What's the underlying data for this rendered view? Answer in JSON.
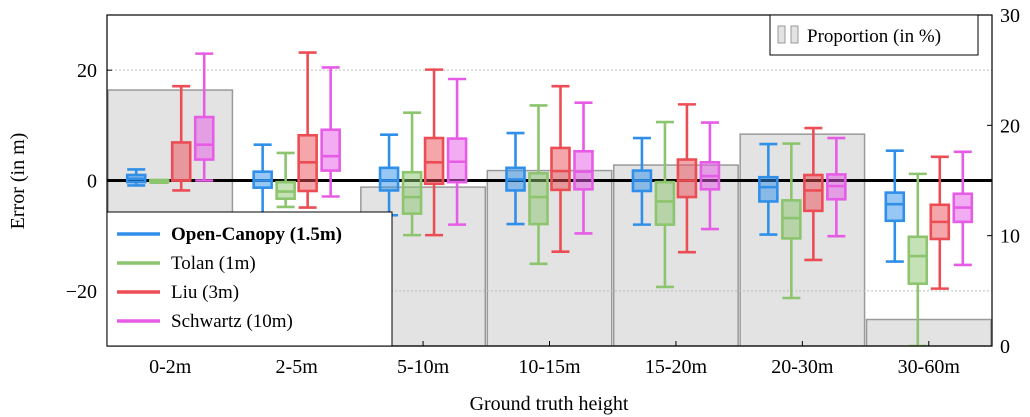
{
  "chart_data": {
    "type": "box",
    "title": "",
    "xlabel": "Ground truth height",
    "ylabel": "Error (in m)",
    "ylim": [
      -30,
      30
    ],
    "yticks": [
      -20,
      0,
      20
    ],
    "y2lim": [
      0,
      30
    ],
    "y2ticks": [
      0,
      10,
      20,
      30
    ],
    "grid": "horizontal dashed at primary ticks",
    "legend_position": "bottom-left",
    "categories": [
      "0-2m",
      "2-5m",
      "5-10m",
      "10-15m",
      "15-20m",
      "20-30m",
      "30-60m"
    ],
    "proportion": {
      "name": "Proportion (in %)",
      "axis": "secondary",
      "values": [
        23.2,
        8.8,
        14.4,
        15.9,
        16.4,
        19.2,
        2.4
      ],
      "color": "#d0d0d0"
    },
    "series": [
      {
        "name": "Open-Canopy (1.5m)",
        "bold": true,
        "color": "#2f8fe9",
        "boxes": [
          {
            "whislo": -0.9,
            "q1": -0.3,
            "med": 0.3,
            "q3": 1.0,
            "whishi": 2.0
          },
          {
            "whislo": -6.0,
            "q1": -1.3,
            "med": 0.0,
            "q3": 1.6,
            "whishi": 6.5
          },
          {
            "whislo": -6.3,
            "q1": -1.8,
            "med": 0.0,
            "q3": 2.3,
            "whishi": 8.3
          },
          {
            "whislo": -7.9,
            "q1": -1.8,
            "med": 0.2,
            "q3": 2.3,
            "whishi": 8.6
          },
          {
            "whislo": -8.0,
            "q1": -1.9,
            "med": 0.0,
            "q3": 1.8,
            "whishi": 7.7
          },
          {
            "whislo": -9.8,
            "q1": -3.8,
            "med": -1.2,
            "q3": 0.6,
            "whishi": 6.6
          },
          {
            "whislo": -14.7,
            "q1": -7.3,
            "med": -4.3,
            "q3": -2.2,
            "whishi": 5.4
          }
        ]
      },
      {
        "name": "Tolan (1m)",
        "bold": false,
        "color": "#8cc56e",
        "boxes": [
          {
            "whislo": -0.4,
            "q1": -0.3,
            "med": -0.1,
            "q3": 0.0,
            "whishi": 0.1
          },
          {
            "whislo": -4.8,
            "q1": -3.3,
            "med": -2.0,
            "q3": -0.3,
            "whishi": 5.0
          },
          {
            "whislo": -9.9,
            "q1": -6.0,
            "med": -3.0,
            "q3": 1.5,
            "whishi": 12.3
          },
          {
            "whislo": -15.1,
            "q1": -7.9,
            "med": -3.0,
            "q3": 1.3,
            "whishi": 13.6
          },
          {
            "whislo": -19.3,
            "q1": -8.0,
            "med": -3.8,
            "q3": -0.3,
            "whishi": 10.6
          },
          {
            "whislo": -21.3,
            "q1": -10.5,
            "med": -6.8,
            "q3": -3.6,
            "whishi": 6.7
          },
          {
            "whislo": -30.0,
            "q1": -18.7,
            "med": -13.7,
            "q3": -10.2,
            "whishi": 1.2
          }
        ]
      },
      {
        "name": "Liu (3m)",
        "bold": false,
        "color": "#ec4d55",
        "boxes": [
          {
            "whislo": -1.8,
            "q1": 0.0,
            "med": 0.0,
            "q3": 6.9,
            "whishi": 17.1
          },
          {
            "whislo": -4.9,
            "q1": -1.9,
            "med": 3.3,
            "q3": 8.2,
            "whishi": 23.2
          },
          {
            "whislo": -9.9,
            "q1": -0.6,
            "med": 3.3,
            "q3": 7.7,
            "whishi": 20.1
          },
          {
            "whislo": -12.9,
            "q1": -1.7,
            "med": 1.7,
            "q3": 5.9,
            "whishi": 17.1
          },
          {
            "whislo": -13.0,
            "q1": -3.0,
            "med": 0.0,
            "q3": 3.8,
            "whishi": 13.8
          },
          {
            "whislo": -14.4,
            "q1": -5.5,
            "med": -1.8,
            "q3": 1.0,
            "whishi": 9.5
          },
          {
            "whislo": -19.6,
            "q1": -10.6,
            "med": -7.5,
            "q3": -4.4,
            "whishi": 4.3
          }
        ]
      },
      {
        "name": "Schwartz (10m)",
        "bold": false,
        "color": "#e65ce6",
        "boxes": [
          {
            "whislo": 0.0,
            "q1": 3.8,
            "med": 6.5,
            "q3": 11.5,
            "whishi": 23.0
          },
          {
            "whislo": -2.9,
            "q1": 1.8,
            "med": 4.4,
            "q3": 9.2,
            "whishi": 20.5
          },
          {
            "whislo": -8.0,
            "q1": -0.3,
            "med": 3.4,
            "q3": 7.6,
            "whishi": 18.4
          },
          {
            "whislo": -9.6,
            "q1": -1.6,
            "med": 1.6,
            "q3": 5.3,
            "whishi": 14.1
          },
          {
            "whislo": -8.8,
            "q1": -1.6,
            "med": 0.8,
            "q3": 3.3,
            "whishi": 10.5
          },
          {
            "whislo": -10.1,
            "q1": -3.4,
            "med": -1.0,
            "q3": 1.1,
            "whishi": 7.7
          },
          {
            "whislo": -15.3,
            "q1": -7.5,
            "med": -4.9,
            "q3": -2.4,
            "whishi": 5.2
          }
        ]
      }
    ]
  }
}
